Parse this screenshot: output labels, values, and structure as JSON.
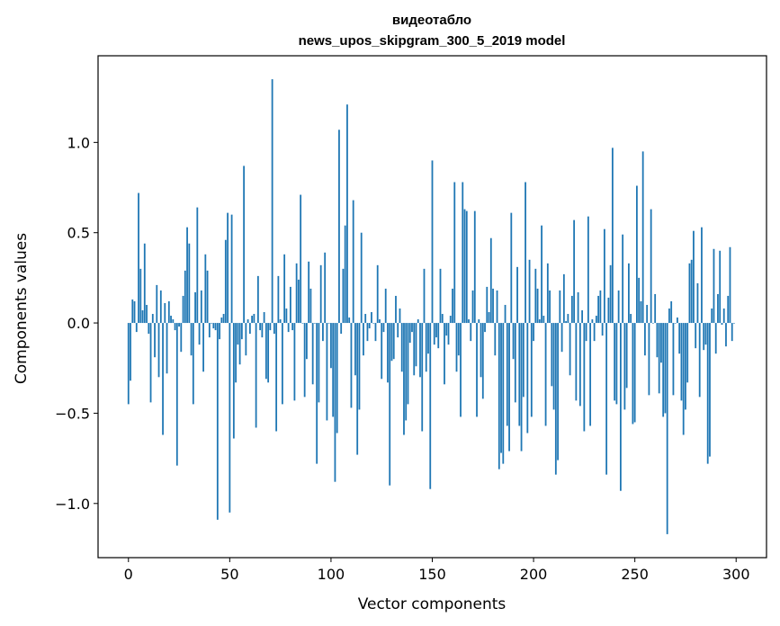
{
  "chart_data": {
    "type": "bar",
    "title_line1": "видеотабло",
    "title_line2": "news_upos_skipgram_300_5_2019 model",
    "xlabel": "Vector components",
    "ylabel": "Components values",
    "xlim": [
      -15,
      315
    ],
    "ylim": [
      -1.3,
      1.48
    ],
    "xticks": [
      0,
      50,
      100,
      150,
      200,
      250,
      300
    ],
    "xtick_labels": [
      "0",
      "50",
      "100",
      "150",
      "200",
      "250",
      "300"
    ],
    "yticks": [
      -1.0,
      -0.5,
      0.0,
      0.5,
      1.0
    ],
    "ytick_labels": [
      "−1.0",
      "−0.5",
      "0.0",
      "0.5",
      "1.0"
    ],
    "bar_color": "#1f77b4",
    "values": [
      -0.45,
      -0.32,
      0.13,
      0.12,
      -0.05,
      0.72,
      0.3,
      0.07,
      0.44,
      0.1,
      -0.06,
      -0.44,
      0.05,
      -0.19,
      0.21,
      -0.3,
      0.18,
      -0.62,
      0.11,
      -0.28,
      0.12,
      0.04,
      0.02,
      -0.04,
      -0.79,
      -0.02,
      -0.16,
      0.15,
      0.29,
      0.53,
      0.44,
      -0.18,
      -0.45,
      0.17,
      0.64,
      -0.12,
      0.18,
      -0.27,
      0.38,
      0.29,
      -0.08,
      0.0,
      -0.03,
      -0.04,
      -1.09,
      -0.09,
      0.03,
      0.05,
      0.46,
      0.61,
      -1.05,
      0.6,
      -0.64,
      -0.33,
      -0.12,
      -0.23,
      -0.09,
      0.87,
      -0.18,
      0.02,
      -0.06,
      0.04,
      0.05,
      -0.58,
      0.26,
      -0.04,
      -0.08,
      0.06,
      -0.31,
      -0.33,
      -0.04,
      1.35,
      -0.06,
      -0.6,
      0.26,
      0.02,
      -0.45,
      0.38,
      0.08,
      -0.05,
      0.2,
      -0.04,
      -0.43,
      0.33,
      0.24,
      0.71,
      0.0,
      -0.41,
      -0.2,
      0.34,
      0.19,
      -0.34,
      0.0,
      -0.78,
      -0.44,
      0.32,
      -0.1,
      0.39,
      -0.54,
      0.0,
      -0.25,
      -0.52,
      -0.88,
      -0.61,
      1.07,
      -0.06,
      0.3,
      0.54,
      1.21,
      0.03,
      -0.47,
      0.68,
      -0.29,
      -0.73,
      -0.48,
      0.5,
      -0.18,
      0.05,
      -0.1,
      -0.03,
      0.06,
      0.0,
      -0.1,
      0.32,
      0.02,
      -0.31,
      -0.05,
      0.19,
      -0.33,
      -0.9,
      -0.21,
      -0.2,
      0.15,
      -0.08,
      0.08,
      -0.27,
      -0.62,
      -0.54,
      -0.45,
      -0.11,
      -0.05,
      -0.29,
      -0.24,
      0.02,
      -0.3,
      -0.6,
      0.3,
      -0.27,
      -0.17,
      -0.92,
      0.9,
      -0.12,
      -0.08,
      -0.14,
      0.3,
      0.05,
      -0.34,
      -0.07,
      -0.12,
      0.04,
      0.19,
      0.78,
      -0.27,
      -0.18,
      -0.52,
      0.78,
      0.63,
      0.62,
      0.02,
      -0.1,
      0.18,
      0.62,
      -0.52,
      0.02,
      -0.3,
      -0.42,
      -0.05,
      0.2,
      0.06,
      0.47,
      0.19,
      -0.18,
      0.18,
      -0.81,
      -0.72,
      -0.78,
      0.1,
      -0.57,
      -0.71,
      0.61,
      -0.2,
      -0.44,
      0.31,
      -0.57,
      -0.71,
      -0.41,
      0.78,
      -0.61,
      0.35,
      -0.52,
      -0.1,
      0.3,
      0.19,
      0.02,
      0.54,
      0.04,
      -0.57,
      0.33,
      0.18,
      -0.35,
      -0.48,
      -0.84,
      -0.76,
      0.18,
      -0.16,
      0.27,
      0.01,
      0.05,
      -0.29,
      0.15,
      0.57,
      -0.43,
      0.17,
      -0.46,
      0.07,
      -0.6,
      -0.1,
      0.59,
      -0.57,
      0.02,
      -0.1,
      0.04,
      0.15,
      0.18,
      -0.07,
      0.52,
      -0.84,
      0.14,
      0.32,
      0.97,
      -0.43,
      -0.45,
      0.18,
      -0.93,
      0.49,
      -0.48,
      -0.36,
      0.33,
      0.05,
      -0.56,
      -0.55,
      0.76,
      0.25,
      0.12,
      0.95,
      -0.18,
      0.1,
      -0.4,
      0.63,
      0.0,
      0.16,
      -0.19,
      -0.39,
      -0.22,
      -0.52,
      -0.5,
      -1.17,
      0.08,
      0.12,
      -0.4,
      0.0,
      0.03,
      -0.17,
      -0.43,
      -0.62,
      -0.48,
      -0.33,
      0.33,
      0.35,
      0.51,
      -0.14,
      0.22,
      -0.41,
      0.53,
      -0.15,
      -0.12,
      -0.78,
      -0.74,
      0.08,
      0.41,
      -0.17,
      0.16,
      0.4,
      -0.01,
      0.08,
      -0.13,
      0.15,
      0.42,
      -0.1,
      0.0
    ]
  }
}
